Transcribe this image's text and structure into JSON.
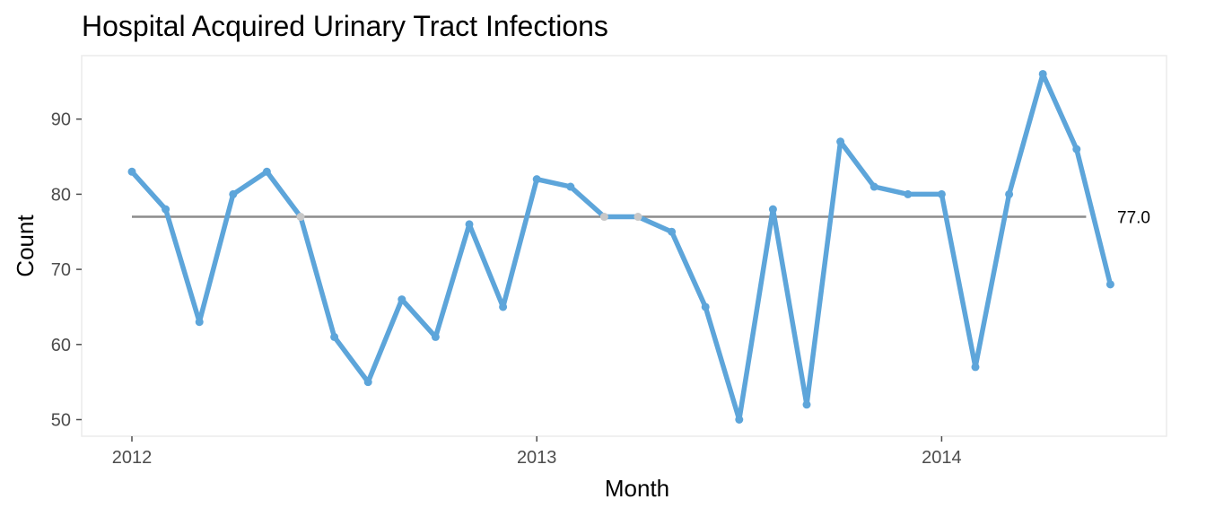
{
  "chart_data": {
    "type": "line",
    "title": "Hospital Acquired Urinary Tract Infections",
    "xlabel": "Month",
    "ylabel": "Count",
    "x_tick_labels": [
      "2012",
      "2013",
      "2014"
    ],
    "y_tick_labels": [
      "50",
      "60",
      "70",
      "80",
      "90"
    ],
    "ylim": [
      48,
      98
    ],
    "grid": false,
    "series": [
      {
        "x": [
          "2012-01",
          "2012-02",
          "2012-03",
          "2012-04",
          "2012-05",
          "2012-06",
          "2012-07",
          "2012-08",
          "2012-09",
          "2012-10",
          "2012-11",
          "2012-12",
          "2013-01",
          "2013-02",
          "2013-03",
          "2013-04",
          "2013-05",
          "2013-06",
          "2013-07",
          "2013-08",
          "2013-09",
          "2013-10",
          "2013-11",
          "2013-12",
          "2014-01",
          "2014-02",
          "2014-03",
          "2014-04",
          "2014-05",
          "2014-06"
        ],
        "values": [
          83,
          78,
          63,
          80,
          83,
          77,
          61,
          55,
          66,
          61,
          76,
          65,
          82,
          81,
          77,
          77,
          75,
          65,
          50,
          78,
          52,
          87,
          81,
          80,
          80,
          57,
          80,
          96,
          86,
          68
        ]
      }
    ],
    "center_line": {
      "value": 77.0,
      "label": "77.0"
    },
    "colors": {
      "line": "#5DA5DA",
      "on_center_point": "#C8C8C8",
      "center_line": "#8C8C8C",
      "panel_border": "#EBEBEB",
      "tick": "#4D4D4D"
    }
  }
}
